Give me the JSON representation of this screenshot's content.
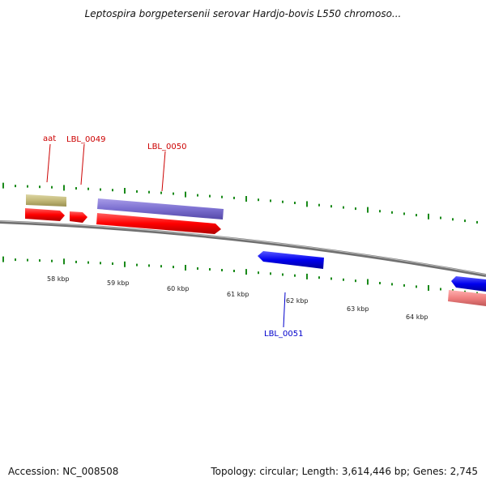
{
  "title": "Leptospira borgpetersenii serovar Hardjo-bovis L550 chromoso...",
  "footer": {
    "accession": "Accession: NC_008508",
    "summary": "Topology: circular; Length: 3,614,446 bp; Genes: 2,745"
  },
  "colors": {
    "backbone": "#808080",
    "tick": "#1a8a1a",
    "forward_gene": "#ff0000",
    "reverse_gene": "#0000ee",
    "reverse_gene_light": "#f08080",
    "feature_purple": "#7b6fd0",
    "feature_olive": "#c2b878",
    "label_red": "#cc0000",
    "label_blue": "#0000cc"
  },
  "scale_labels": [
    "58 kbp",
    "59 kbp",
    "60 kbp",
    "61 kbp",
    "62 kbp",
    "63 kbp",
    "64 kbp"
  ],
  "gene_labels": [
    {
      "text": "aat",
      "strand": "forward"
    },
    {
      "text": "LBL_0049",
      "strand": "forward"
    },
    {
      "text": "LBL_0050",
      "strand": "forward"
    },
    {
      "text": "LBL_0051",
      "strand": "reverse"
    }
  ]
}
